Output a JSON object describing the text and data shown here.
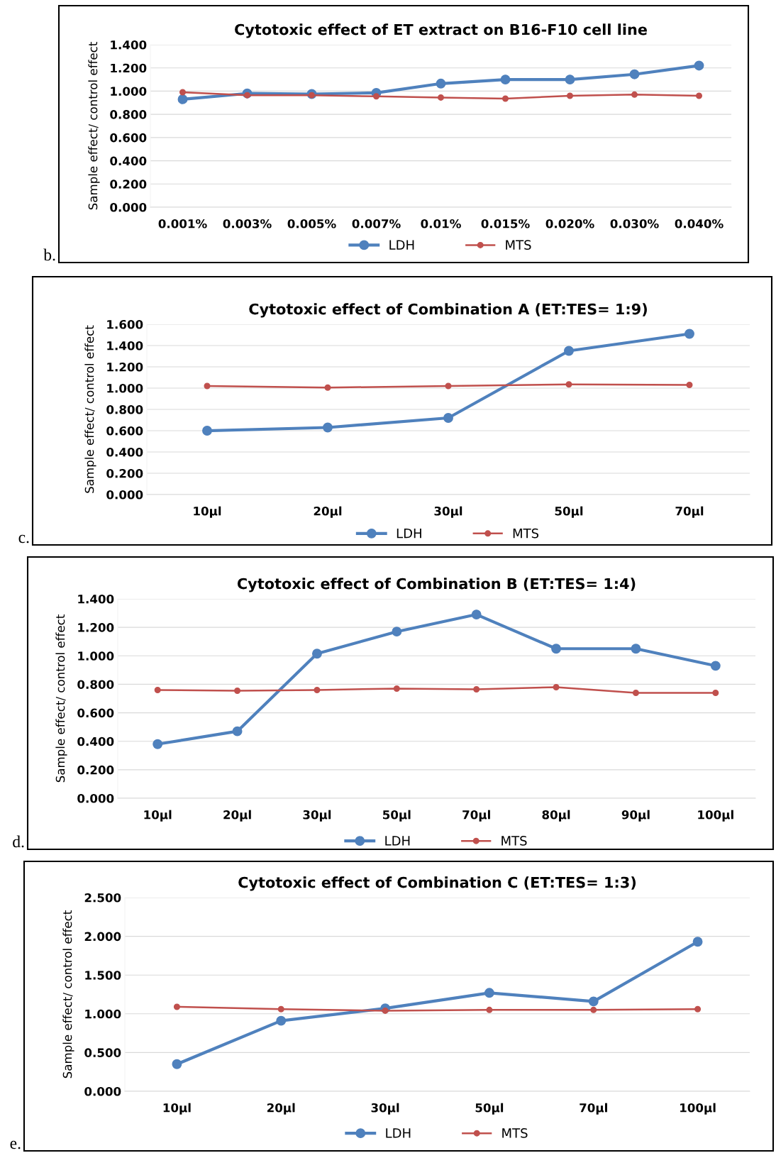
{
  "chart_data": [
    {
      "type": "line",
      "title": "Cytotoxic effect of ET extract on B16-F10 cell line",
      "ylabel": "Sample effect/ control effect",
      "annotations": [
        "b."
      ],
      "categories": [
        "0.001%",
        "0.003%",
        "0.005%",
        "0.007%",
        "0.01%",
        "0.015%",
        "0.020%",
        "0.030%",
        "0.040%"
      ],
      "series": [
        {
          "name": "LDH",
          "color": "#4f81bd",
          "values": [
            0.93,
            0.98,
            0.975,
            0.985,
            1.065,
            1.1,
            1.1,
            1.145,
            1.22
          ]
        },
        {
          "name": "MTS",
          "color": "#c0504d",
          "values": [
            0.99,
            0.965,
            0.965,
            0.955,
            0.945,
            0.935,
            0.96,
            0.97,
            0.96
          ]
        }
      ],
      "ylim": [
        0,
        1.4
      ],
      "yticks": [
        {
          "value": 0,
          "label": "0.000"
        },
        {
          "value": 0.2,
          "label": "0.200"
        },
        {
          "value": 0.4,
          "label": "0.400"
        },
        {
          "value": 0.6,
          "label": "0.600"
        },
        {
          "value": 0.8,
          "label": "0.800"
        },
        {
          "value": 1.0,
          "label": "1.000"
        },
        {
          "value": 1.2,
          "label": "1.200"
        },
        {
          "value": 1.4,
          "label": "1.400"
        }
      ],
      "grid": "y",
      "legend": "bottom",
      "marker": "circle",
      "line_style": "solid"
    },
    {
      "type": "line",
      "title": "Cytotoxic effect of Combination A (ET:TES= 1:9)",
      "ylabel": "Sample effect/ control effect",
      "annotations": [
        "c."
      ],
      "categories": [
        "10µl",
        "20µl",
        "30µl",
        "50µl",
        "70µl"
      ],
      "series": [
        {
          "name": "LDH",
          "color": "#4f81bd",
          "values": [
            0.6,
            0.63,
            0.72,
            1.35,
            1.51
          ]
        },
        {
          "name": "MTS",
          "color": "#c0504d",
          "values": [
            1.02,
            1.005,
            1.02,
            1.035,
            1.03
          ]
        }
      ],
      "ylim": [
        0,
        1.6
      ],
      "yticks": [
        {
          "value": 0,
          "label": "0.000"
        },
        {
          "value": 0.2,
          "label": "0.200"
        },
        {
          "value": 0.4,
          "label": "0.400"
        },
        {
          "value": 0.6,
          "label": "0.600"
        },
        {
          "value": 0.8,
          "label": "0.800"
        },
        {
          "value": 1.0,
          "label": "1.000"
        },
        {
          "value": 1.2,
          "label": "1.200"
        },
        {
          "value": 1.4,
          "label": "1.400"
        },
        {
          "value": 1.6,
          "label": "1.600"
        }
      ],
      "grid": "y",
      "legend": "bottom",
      "marker": "circle",
      "line_style": "solid"
    },
    {
      "type": "line",
      "title": "Cytotoxic effect of Combination B (ET:TES= 1:4)",
      "ylabel": "Sample effect/ control effect",
      "annotations": [
        "d."
      ],
      "categories": [
        "10µl",
        "20µl",
        "30µl",
        "50µl",
        "70µl",
        "80µl",
        "90µl",
        "100µl"
      ],
      "series": [
        {
          "name": "LDH",
          "color": "#4f81bd",
          "values": [
            0.38,
            0.47,
            1.015,
            1.17,
            1.29,
            1.05,
            1.05,
            0.93
          ]
        },
        {
          "name": "MTS",
          "color": "#c0504d",
          "values": [
            0.76,
            0.755,
            0.76,
            0.77,
            0.765,
            0.78,
            0.74,
            0.74
          ]
        }
      ],
      "ylim": [
        0,
        1.4
      ],
      "yticks": [
        {
          "value": 0,
          "label": "0.000"
        },
        {
          "value": 0.2,
          "label": "0.200"
        },
        {
          "value": 0.4,
          "label": "0.400"
        },
        {
          "value": 0.6,
          "label": "0.600"
        },
        {
          "value": 0.8,
          "label": "0.800"
        },
        {
          "value": 1.0,
          "label": "1.000"
        },
        {
          "value": 1.2,
          "label": "1.200"
        },
        {
          "value": 1.4,
          "label": "1.400"
        }
      ],
      "grid": "y",
      "legend": "bottom",
      "marker": "circle",
      "line_style": "solid"
    },
    {
      "type": "line",
      "title": "Cytotoxic effect of Combination C (ET:TES= 1:3)",
      "ylabel": "Sample effect/ control effect",
      "annotations": [
        "e."
      ],
      "categories": [
        "10µl",
        "20µl",
        "30µl",
        "50µl",
        "70µl",
        "100µl"
      ],
      "series": [
        {
          "name": "LDH",
          "color": "#4f81bd",
          "values": [
            0.35,
            0.91,
            1.07,
            1.27,
            1.16,
            1.93
          ]
        },
        {
          "name": "MTS",
          "color": "#c0504d",
          "values": [
            1.09,
            1.06,
            1.04,
            1.05,
            1.05,
            1.06
          ]
        }
      ],
      "ylim": [
        0,
        2.5
      ],
      "yticks": [
        {
          "value": 0,
          "label": "0.000"
        },
        {
          "value": 0.5,
          "label": "0.500"
        },
        {
          "value": 1.0,
          "label": "1.000"
        },
        {
          "value": 1.5,
          "label": "1.500"
        },
        {
          "value": 2.0,
          "label": "2.000"
        },
        {
          "value": 2.5,
          "label": "2.500"
        }
      ],
      "grid": "y",
      "legend": "bottom",
      "marker": "circle",
      "line_style": "solid"
    }
  ]
}
